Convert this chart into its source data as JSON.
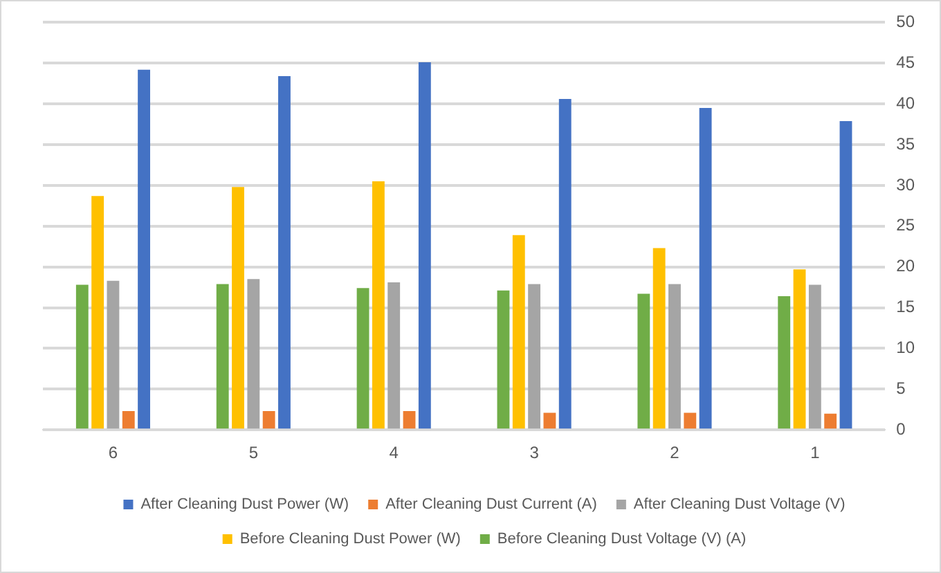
{
  "chart_data": {
    "type": "bar",
    "categories": [
      "6",
      "5",
      "4",
      "3",
      "2",
      "1"
    ],
    "series": [
      {
        "name": "Before Cleaning Dust Voltage (V) (A)",
        "color": "#70ad47",
        "values": [
          17.8,
          17.9,
          17.4,
          17.1,
          16.7,
          16.4
        ]
      },
      {
        "name": "Before Cleaning Dust Power (W)",
        "color": "#ffc000",
        "values": [
          28.7,
          29.8,
          30.5,
          23.9,
          22.3,
          19.7
        ]
      },
      {
        "name": "After Cleaning Dust Voltage (V)",
        "color": "#a5a5a5",
        "values": [
          18.3,
          18.5,
          18.1,
          17.9,
          17.9,
          17.8
        ]
      },
      {
        "name": "After Cleaning Dust Current (A)",
        "color": "#ed7d31",
        "values": [
          2.3,
          2.3,
          2.3,
          2.1,
          2.1,
          2.0
        ]
      },
      {
        "name": "After Cleaning Dust Power (W)",
        "color": "#4472c4",
        "values": [
          44.2,
          43.4,
          45.1,
          40.6,
          39.5,
          37.9
        ]
      }
    ],
    "ylim": [
      0,
      50
    ],
    "yticks": [
      0,
      5,
      10,
      15,
      20,
      25,
      30,
      35,
      40,
      45,
      50
    ],
    "grid": "y",
    "legend": "bottom"
  }
}
